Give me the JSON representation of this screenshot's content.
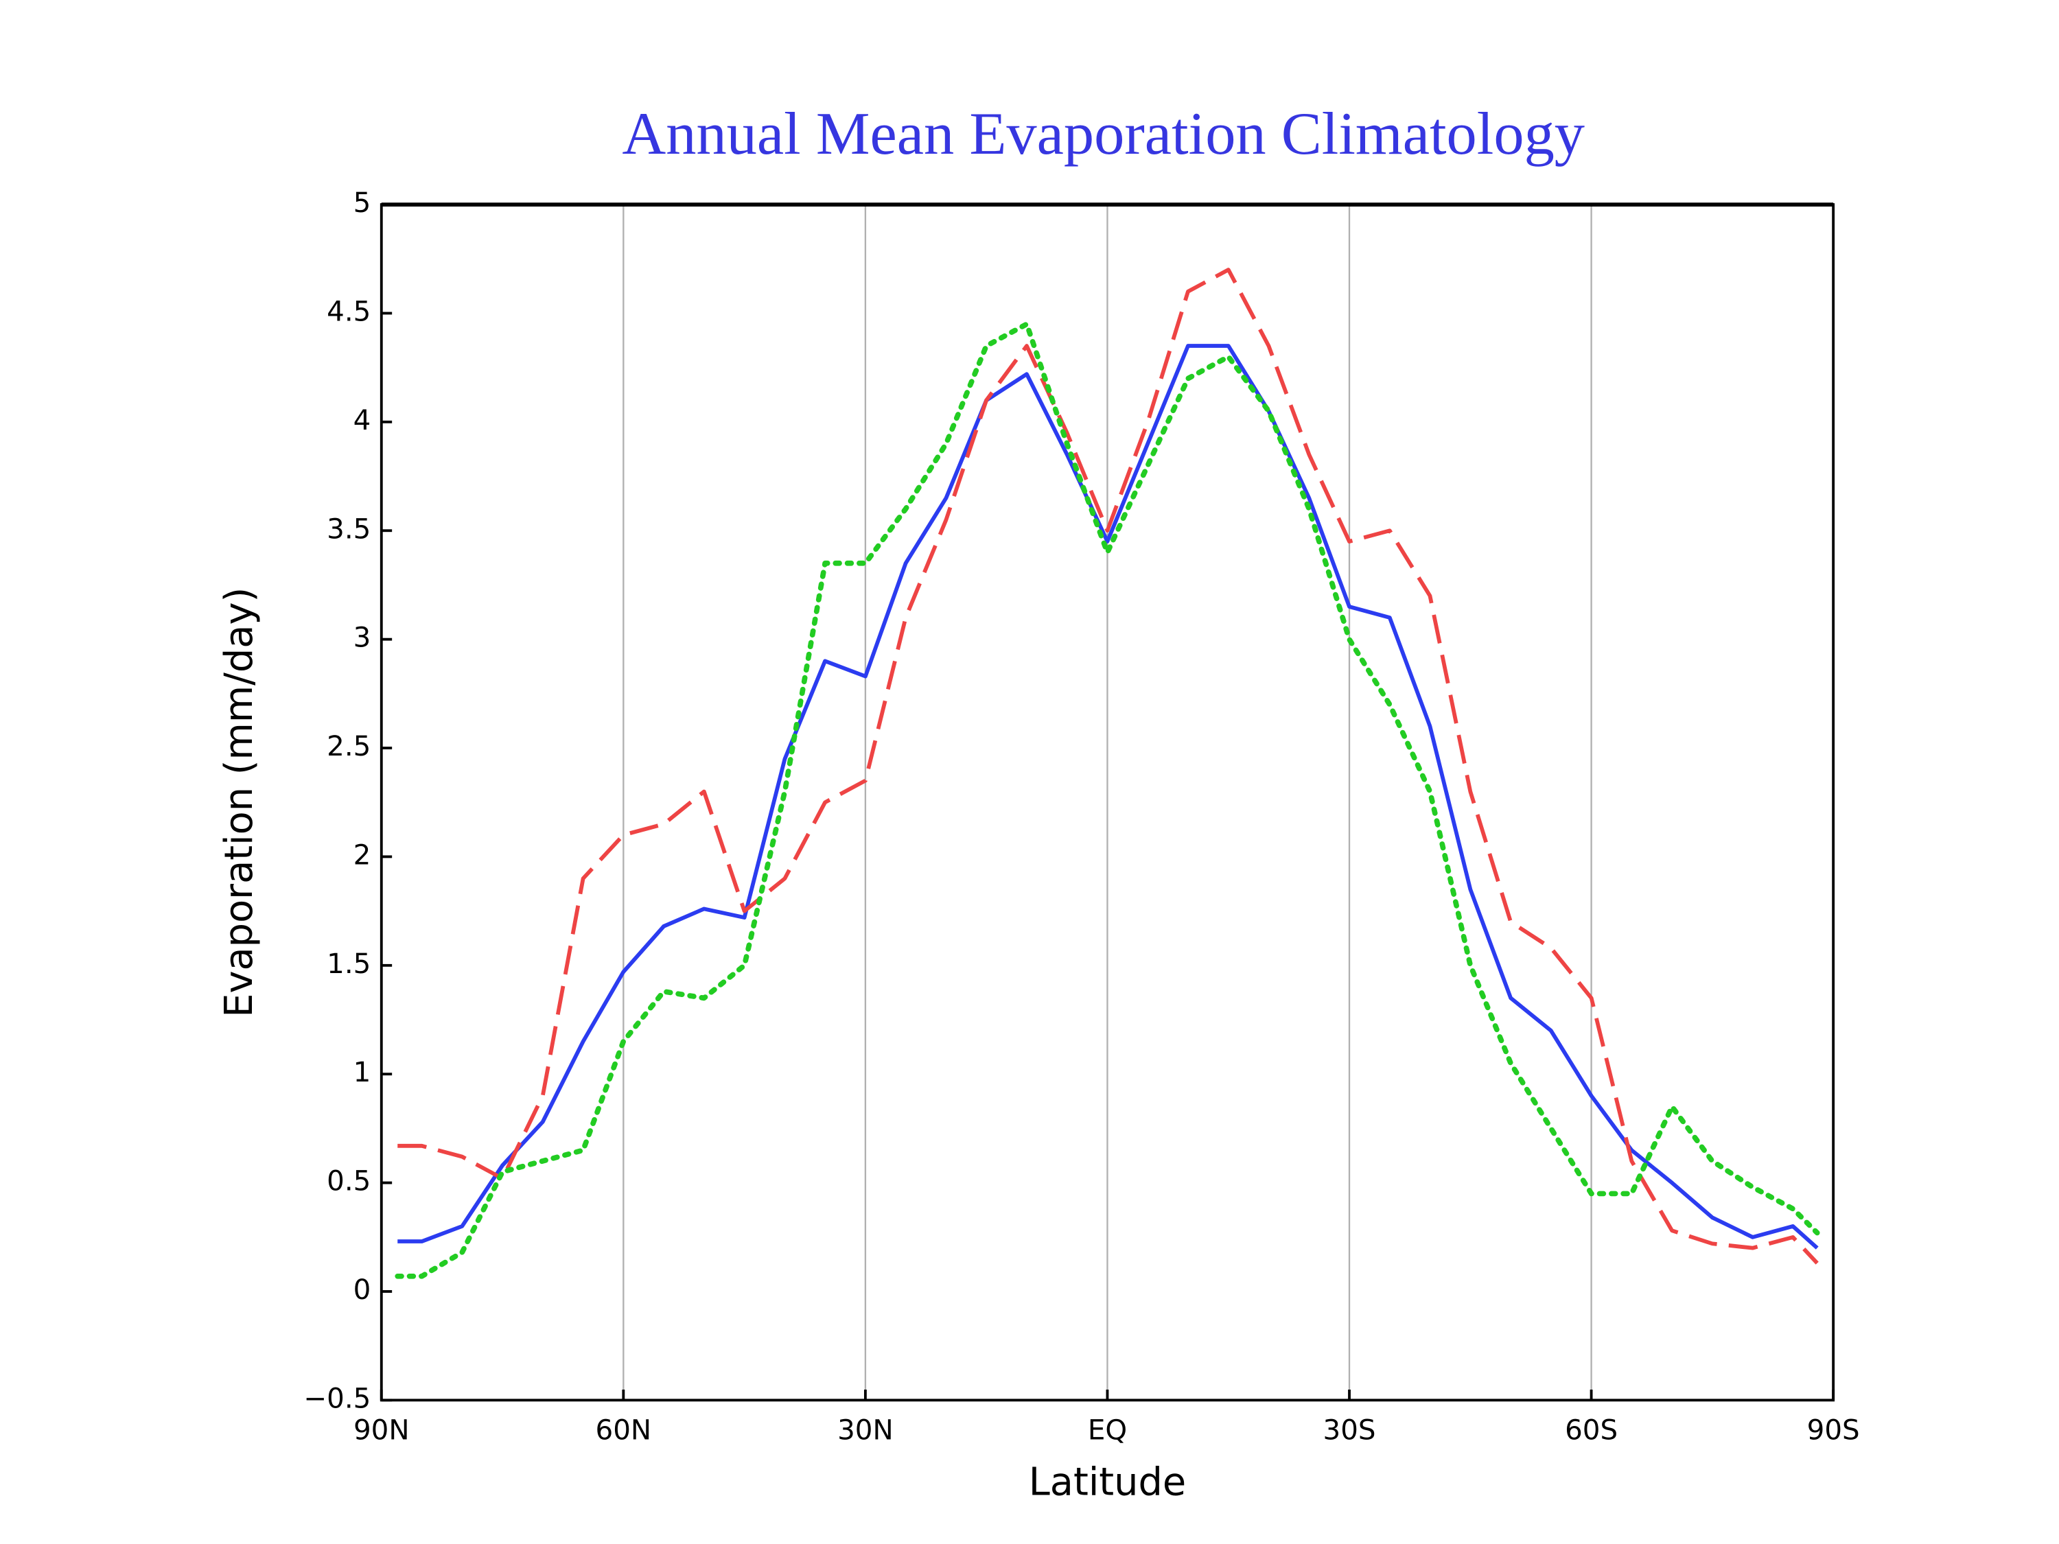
{
  "chart_data": {
    "type": "line",
    "title": "Annual Mean Evaporation Climatology",
    "xlabel": "Latitude",
    "ylabel": "Evaporation  (mm/day)",
    "x": [
      88,
      85,
      80,
      75,
      70,
      65,
      60,
      55,
      50,
      45,
      40,
      35,
      30,
      25,
      20,
      15,
      10,
      5,
      0,
      -5,
      -10,
      -15,
      -20,
      -25,
      -30,
      -35,
      -40,
      -45,
      -50,
      -55,
      -60,
      -65,
      -70,
      -75,
      -80,
      -85,
      -88
    ],
    "series": [
      {
        "color": "#2b3cf0",
        "dash": "solid",
        "values": [
          0.23,
          0.23,
          0.3,
          0.58,
          0.78,
          1.15,
          1.47,
          1.68,
          1.76,
          1.72,
          2.45,
          2.9,
          2.83,
          3.35,
          3.65,
          4.1,
          4.22,
          3.85,
          3.45,
          3.9,
          4.35,
          4.35,
          4.05,
          3.65,
          3.15,
          3.1,
          2.6,
          1.85,
          1.35,
          1.2,
          0.9,
          0.65,
          0.5,
          0.34,
          0.25,
          0.3,
          0.2
        ]
      },
      {
        "color": "#ee4444",
        "dash": "dashed",
        "values": [
          0.67,
          0.67,
          0.62,
          0.52,
          0.9,
          1.9,
          2.1,
          2.15,
          2.3,
          1.75,
          1.9,
          2.25,
          2.35,
          3.1,
          3.55,
          4.1,
          4.35,
          3.95,
          3.5,
          4.0,
          4.6,
          4.7,
          4.35,
          3.85,
          3.45,
          3.5,
          3.2,
          2.3,
          1.7,
          1.58,
          1.35,
          0.6,
          0.28,
          0.22,
          0.2,
          0.25,
          0.13
        ]
      },
      {
        "color": "#22cc22",
        "dash": "dotted",
        "values": [
          0.07,
          0.07,
          0.18,
          0.55,
          0.6,
          0.65,
          1.15,
          1.38,
          1.35,
          1.5,
          2.3,
          3.35,
          3.35,
          3.6,
          3.9,
          4.35,
          4.45,
          3.9,
          3.4,
          3.8,
          4.2,
          4.3,
          4.05,
          3.6,
          3.0,
          2.7,
          2.3,
          1.5,
          1.05,
          0.75,
          0.45,
          0.45,
          0.85,
          0.6,
          0.48,
          0.38,
          0.27
        ]
      }
    ],
    "xlim": [
      90,
      -90
    ],
    "xticks": [
      {
        "value": 90,
        "label": "90N"
      },
      {
        "value": 60,
        "label": "60N"
      },
      {
        "value": 30,
        "label": "30N"
      },
      {
        "value": 0,
        "label": "EQ"
      },
      {
        "value": -30,
        "label": "30S"
      },
      {
        "value": -60,
        "label": "60S"
      },
      {
        "value": -90,
        "label": "90S"
      }
    ],
    "ylim": [
      -0.5,
      5
    ],
    "yticks": [
      {
        "value": -0.5,
        "label": "−0.5"
      },
      0,
      0.5,
      1,
      1.5,
      2,
      2.5,
      3,
      3.5,
      4,
      4.5,
      5
    ],
    "grid": "x"
  }
}
